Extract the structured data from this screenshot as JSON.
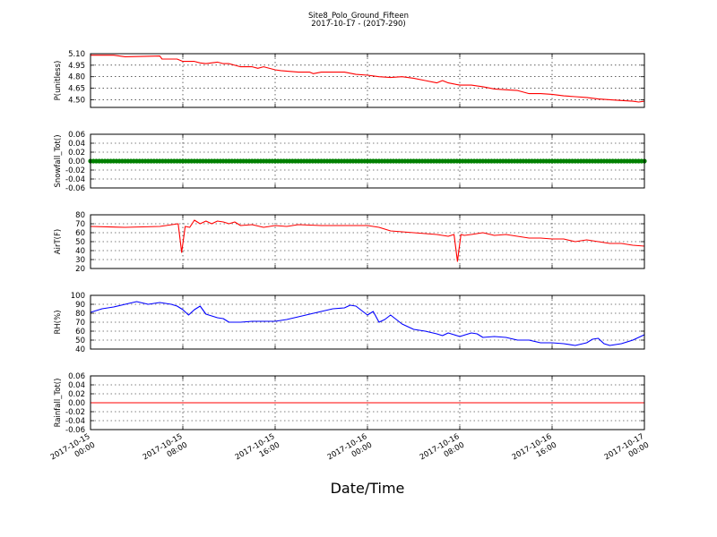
{
  "title": "Site8_Polo_Ground_Fifteen",
  "subtitle": "2017-10-17 - (2017-290)",
  "xlabel": "Date/Time",
  "x_ticks": [
    {
      "l1": "2017-10-15",
      "l2": "00:00",
      "h": 0
    },
    {
      "l1": "2017-10-15",
      "l2": "08:00",
      "h": 8
    },
    {
      "l1": "2017-10-15",
      "l2": "16:00",
      "h": 16
    },
    {
      "l1": "2017-10-16",
      "l2": "00:00",
      "h": 24
    },
    {
      "l1": "2017-10-16",
      "l2": "08:00",
      "h": 32
    },
    {
      "l1": "2017-10-16",
      "l2": "16:00",
      "h": 40
    },
    {
      "l1": "2017-10-17",
      "l2": "00:00",
      "h": 48
    }
  ],
  "chart_data": [
    {
      "type": "line",
      "ylabel": "P(unitless)",
      "color": "#ff0000",
      "ylim": [
        4.4,
        5.1
      ],
      "yticks": [
        4.5,
        4.65,
        4.8,
        4.95,
        5.1
      ],
      "ytick_labels": [
        "4.50",
        "4.65",
        "4.80",
        "4.95",
        "5.10"
      ],
      "x_hours": [
        0,
        2,
        3,
        6,
        6.2,
        7.5,
        8,
        9,
        9.5,
        10,
        11,
        11.5,
        12,
        13,
        14,
        14.5,
        15,
        16,
        16.5,
        18,
        19,
        19.3,
        20,
        21.5,
        22,
        23,
        24,
        25,
        26,
        27,
        28,
        29,
        30,
        30.5,
        31,
        32,
        33,
        34,
        35,
        36,
        37,
        38,
        39,
        40,
        41,
        42,
        43,
        44,
        45,
        46,
        47,
        47.5,
        48
      ],
      "y": [
        5.08,
        5.08,
        5.06,
        5.07,
        5.03,
        5.03,
        5.0,
        5.0,
        4.98,
        4.97,
        4.99,
        4.97,
        4.97,
        4.93,
        4.93,
        4.91,
        4.93,
        4.89,
        4.88,
        4.86,
        4.86,
        4.84,
        4.86,
        4.86,
        4.86,
        4.83,
        4.82,
        4.8,
        4.79,
        4.8,
        4.78,
        4.75,
        4.72,
        4.75,
        4.72,
        4.69,
        4.69,
        4.67,
        4.64,
        4.63,
        4.62,
        4.58,
        4.58,
        4.57,
        4.55,
        4.54,
        4.53,
        4.51,
        4.5,
        4.49,
        4.48,
        4.47,
        4.48
      ]
    },
    {
      "type": "scatter",
      "ylabel": "Snowfall_Tot()",
      "color": "#008000",
      "ylim": [
        -0.06,
        0.06
      ],
      "yticks": [
        -0.06,
        -0.04,
        -0.02,
        0.0,
        0.02,
        0.04,
        0.06
      ],
      "ytick_labels": [
        "-0.06",
        "-0.04",
        "-0.02",
        "0.00",
        "0.02",
        "0.04",
        "0.06"
      ],
      "points_every_hours": 0.25,
      "value": 0.0
    },
    {
      "type": "line",
      "ylabel": "AirT(F)",
      "color": "#ff0000",
      "ylim": [
        20,
        80
      ],
      "yticks": [
        20,
        30,
        40,
        50,
        60,
        70,
        80
      ],
      "ytick_labels": [
        "20",
        "30",
        "40",
        "50",
        "60",
        "70",
        "80"
      ],
      "x_hours": [
        0,
        3,
        6,
        7.6,
        7.9,
        8.2,
        8.6,
        9,
        9.5,
        10,
        10.5,
        11,
        11.5,
        12,
        12.5,
        13,
        14,
        15,
        16,
        17,
        18,
        20,
        22,
        24,
        25,
        26,
        28,
        30,
        31,
        31.5,
        31.8,
        32.1,
        32.4,
        33,
        34,
        35,
        36,
        37,
        38,
        39,
        40,
        41,
        42,
        43,
        44,
        45,
        46,
        47,
        48
      ],
      "y": [
        67,
        66,
        67,
        70,
        38,
        67,
        66,
        74,
        70,
        73,
        70,
        73,
        72,
        70,
        72,
        68,
        69,
        66,
        68,
        67,
        69,
        68,
        68,
        68,
        66,
        62,
        60,
        58,
        56,
        58,
        28,
        58,
        57,
        58,
        60,
        57,
        58,
        56,
        54,
        54,
        53,
        53,
        50,
        52,
        50,
        48,
        48,
        46,
        45
      ]
    },
    {
      "type": "line",
      "ylabel": "RH(%)",
      "color": "#0000ff",
      "ylim": [
        40,
        100
      ],
      "yticks": [
        40,
        50,
        60,
        70,
        80,
        90,
        100
      ],
      "ytick_labels": [
        "40",
        "50",
        "60",
        "70",
        "80",
        "90",
        "100"
      ],
      "x_hours": [
        0,
        1,
        2,
        3,
        4,
        5,
        6,
        7,
        7.5,
        8,
        8.5,
        9,
        9.5,
        10,
        11,
        11.5,
        12,
        13,
        14,
        15,
        16,
        17,
        18,
        19,
        20,
        21,
        22,
        22.5,
        23,
        24,
        24.5,
        25,
        25.5,
        26,
        26.5,
        27,
        28,
        29,
        30,
        30.5,
        31,
        31.5,
        32,
        32.5,
        33,
        33.5,
        34,
        35,
        36,
        37,
        38,
        39,
        40,
        41,
        42,
        43,
        43.5,
        44,
        44.5,
        45,
        46,
        47,
        48
      ],
      "y": [
        81,
        85,
        87,
        90,
        93,
        90,
        92,
        90,
        88,
        84,
        78,
        84,
        88,
        79,
        75,
        74,
        70,
        70,
        71,
        71,
        71,
        73,
        76,
        79,
        82,
        85,
        86,
        89,
        88,
        78,
        82,
        70,
        73,
        78,
        73,
        68,
        62,
        60,
        57,
        55,
        58,
        56,
        54,
        56,
        58,
        57,
        53,
        54,
        53,
        50,
        50,
        47,
        47,
        46,
        44,
        47,
        51,
        52,
        46,
        44,
        46,
        50,
        56
      ]
    },
    {
      "type": "line",
      "ylabel": "Rainfall_Tot()",
      "color": "#ff0000",
      "ylim": [
        -0.06,
        0.06
      ],
      "yticks": [
        -0.06,
        -0.04,
        -0.02,
        0.0,
        0.02,
        0.04,
        0.06
      ],
      "ytick_labels": [
        "-0.06",
        "-0.04",
        "-0.02",
        "0.00",
        "0.02",
        "0.04",
        "0.06"
      ],
      "x_hours": [
        0,
        48
      ],
      "y": [
        0.0,
        0.0
      ]
    }
  ]
}
